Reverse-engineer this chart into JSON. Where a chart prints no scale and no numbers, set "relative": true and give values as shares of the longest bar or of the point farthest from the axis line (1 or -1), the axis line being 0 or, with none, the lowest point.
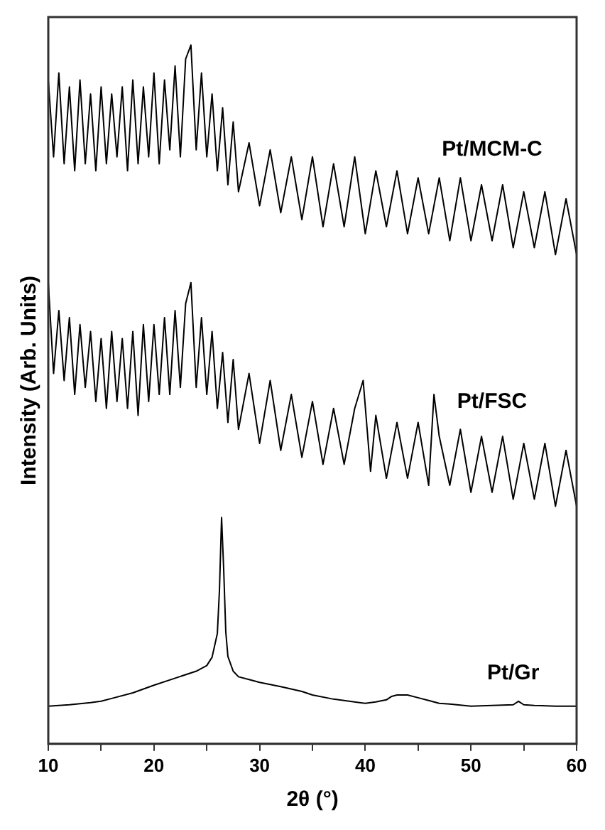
{
  "chart_data": {
    "type": "line",
    "relative": true,
    "xlabel": "2θ (°)",
    "ylabel": "Intensity (Arb. Units)",
    "xlim": [
      10,
      60
    ],
    "xticks": [
      10,
      {
        "value": 15,
        "label": null
      },
      20,
      {
        "value": 25,
        "label": null
      },
      30,
      {
        "value": 35,
        "label": null
      },
      40,
      {
        "value": 45,
        "label": null
      },
      50,
      {
        "value": 55,
        "label": null
      },
      60
    ],
    "grid": false,
    "legend": false,
    "marker": "none",
    "line_style": "solid",
    "series": [
      {
        "name": "Pt/MCM-C",
        "color": "#000000",
        "x": [
          10,
          10.5,
          11,
          11.5,
          12,
          12.5,
          13,
          13.5,
          14,
          14.5,
          15,
          15.5,
          16,
          16.5,
          17,
          17.5,
          18,
          18.5,
          19,
          19.5,
          20,
          20.5,
          21,
          21.5,
          22,
          22.5,
          23,
          23.5,
          24,
          24.5,
          25,
          25.5,
          26,
          26.5,
          27,
          27.5,
          28,
          29,
          30,
          31,
          32,
          33,
          34,
          35,
          36,
          37,
          38,
          39,
          40,
          41,
          42,
          43,
          44,
          45,
          46,
          47,
          48,
          49,
          50,
          51,
          52,
          53,
          54,
          55,
          56,
          57,
          58,
          59,
          60
        ],
        "values": [
          0.95,
          0.84,
          0.96,
          0.83,
          0.94,
          0.82,
          0.95,
          0.83,
          0.93,
          0.82,
          0.94,
          0.83,
          0.93,
          0.84,
          0.94,
          0.82,
          0.95,
          0.83,
          0.94,
          0.84,
          0.96,
          0.83,
          0.95,
          0.85,
          0.97,
          0.84,
          0.98,
          1.0,
          0.85,
          0.96,
          0.84,
          0.93,
          0.82,
          0.91,
          0.8,
          0.89,
          0.79,
          0.86,
          0.77,
          0.85,
          0.76,
          0.84,
          0.75,
          0.84,
          0.74,
          0.83,
          0.74,
          0.84,
          0.73,
          0.82,
          0.74,
          0.82,
          0.73,
          0.81,
          0.73,
          0.81,
          0.72,
          0.81,
          0.72,
          0.8,
          0.72,
          0.8,
          0.71,
          0.79,
          0.71,
          0.79,
          0.7,
          0.78,
          0.7
        ]
      },
      {
        "name": "Pt/FSC",
        "color": "#000000",
        "x": [
          10,
          10.5,
          11,
          11.5,
          12,
          12.5,
          13,
          13.5,
          14,
          14.5,
          15,
          15.5,
          16,
          16.5,
          17,
          17.5,
          18,
          18.5,
          19,
          19.5,
          20,
          20.5,
          21,
          21.5,
          22,
          22.5,
          23,
          23.5,
          24,
          24.5,
          25,
          25.5,
          26,
          26.5,
          27,
          27.5,
          28,
          29,
          30,
          31,
          32,
          33,
          34,
          35,
          36,
          37,
          38,
          39,
          39.8,
          40.5,
          41,
          42,
          43,
          44,
          45,
          46,
          46.5,
          47,
          48,
          49,
          50,
          51,
          52,
          53,
          54,
          55,
          56,
          57,
          58,
          59,
          60
        ],
        "values": [
          0.66,
          0.53,
          0.62,
          0.52,
          0.61,
          0.5,
          0.6,
          0.51,
          0.59,
          0.49,
          0.58,
          0.48,
          0.59,
          0.49,
          0.58,
          0.48,
          0.59,
          0.47,
          0.6,
          0.49,
          0.6,
          0.5,
          0.61,
          0.5,
          0.62,
          0.51,
          0.63,
          0.66,
          0.51,
          0.61,
          0.5,
          0.59,
          0.48,
          0.56,
          0.46,
          0.55,
          0.45,
          0.53,
          0.43,
          0.52,
          0.42,
          0.5,
          0.41,
          0.49,
          0.4,
          0.48,
          0.4,
          0.48,
          0.52,
          0.39,
          0.47,
          0.38,
          0.46,
          0.38,
          0.46,
          0.37,
          0.5,
          0.44,
          0.37,
          0.45,
          0.36,
          0.44,
          0.36,
          0.44,
          0.35,
          0.43,
          0.35,
          0.43,
          0.34,
          0.42,
          0.34
        ]
      },
      {
        "name": "Pt/Gr",
        "color": "#000000",
        "x": [
          10,
          12,
          14,
          15,
          16,
          18,
          20,
          22,
          24,
          25,
          25.5,
          26,
          26.2,
          26.4,
          26.6,
          26.8,
          27,
          27.5,
          28,
          29,
          30,
          32,
          34,
          35,
          37,
          40,
          41,
          42,
          42.5,
          43,
          44,
          45,
          46,
          47,
          48,
          50,
          52,
          54,
          54.5,
          55,
          56,
          58,
          60
        ],
        "values": [
          0.054,
          0.056,
          0.059,
          0.061,
          0.065,
          0.073,
          0.084,
          0.094,
          0.104,
          0.112,
          0.124,
          0.158,
          0.22,
          0.324,
          0.25,
          0.16,
          0.125,
          0.104,
          0.096,
          0.092,
          0.088,
          0.082,
          0.075,
          0.07,
          0.064,
          0.058,
          0.06,
          0.063,
          0.068,
          0.07,
          0.07,
          0.066,
          0.062,
          0.058,
          0.057,
          0.054,
          0.055,
          0.056,
          0.061,
          0.056,
          0.055,
          0.054,
          0.054
        ]
      }
    ]
  }
}
